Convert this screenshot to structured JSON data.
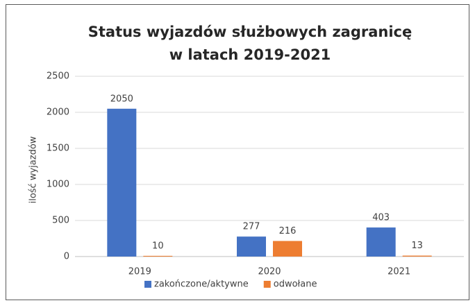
{
  "chart_data": {
    "type": "bar",
    "title": [
      "Status wyjazdów służbowych zagranicę",
      "w latach 2019-2021"
    ],
    "y_label": "ilość wyjazdów",
    "categories": [
      "2019",
      "2020",
      "2021"
    ],
    "series": [
      {
        "name": "zakończone/aktywne",
        "color": "#4472c4",
        "values": [
          2050,
          277,
          403
        ]
      },
      {
        "name": "odwołane",
        "color": "#ed7d31",
        "values": [
          10,
          216,
          13
        ]
      }
    ],
    "ylim": [
      0,
      2500
    ],
    "yticks": [
      0,
      500,
      1000,
      1500,
      2000,
      2500
    ],
    "grid": true,
    "legend": "bottom"
  }
}
